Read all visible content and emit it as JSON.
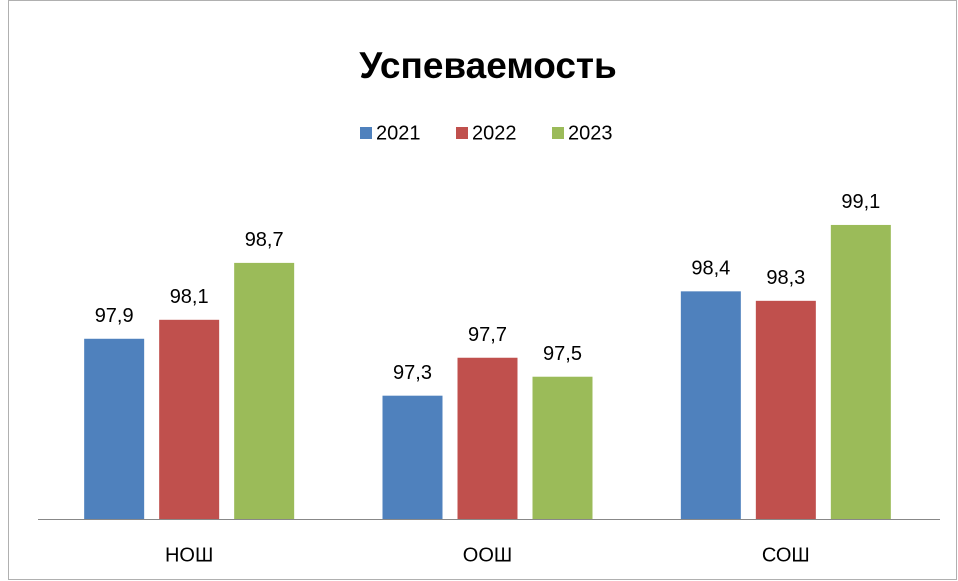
{
  "chart_data": {
    "type": "bar",
    "title": "Успеваемость",
    "categories": [
      "НОШ",
      "ООШ",
      "СОШ"
    ],
    "series": [
      {
        "name": "2021",
        "color": "#4f81bd",
        "values": [
          97.9,
          97.3,
          98.4
        ],
        "value_labels": [
          "97,9",
          "97,3",
          "98,4"
        ]
      },
      {
        "name": "2022",
        "color": "#c0504d",
        "values": [
          98.1,
          97.7,
          98.3
        ],
        "value_labels": [
          "98,1",
          "97,7",
          "98,3"
        ]
      },
      {
        "name": "2023",
        "color": "#9bbb59",
        "values": [
          98.7,
          97.5,
          99.1
        ],
        "value_labels": [
          "98,7",
          "97,5",
          "99,1"
        ]
      }
    ],
    "ylim": [
      96,
      99.5
    ],
    "legend": "top"
  }
}
